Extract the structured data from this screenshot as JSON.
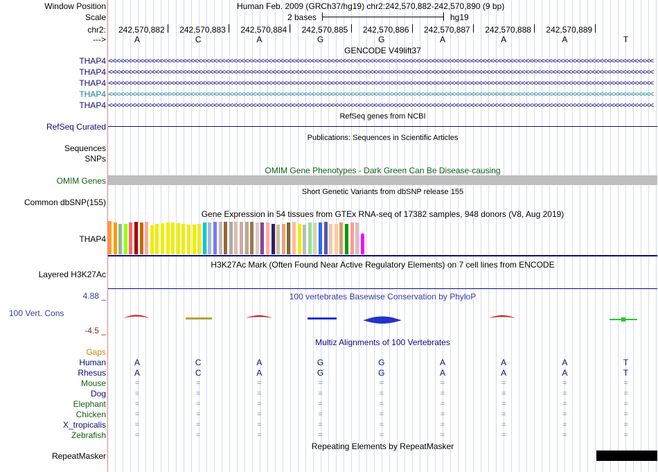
{
  "header": {
    "window_label": "Window Position",
    "window_value": "Human Feb. 2009 (GRCh37/hg19)   chr2:242,570,882-242,570,890 (9 bp)",
    "scale_label": "Scale",
    "scale_text": "2 bases",
    "assembly": "hg19",
    "chrom_label": "chr2:",
    "strand_label": "--->",
    "positions": [
      "242,570,882",
      "242,570,883",
      "242,570,884",
      "242,570,885",
      "242,570,886",
      "242,570,887",
      "242,570,888",
      "242,570,889"
    ],
    "bases": [
      "A",
      "C",
      "A",
      "G",
      "G",
      "A",
      "A",
      "A",
      "T"
    ]
  },
  "gencode": {
    "title": "GENCODE V49lift37",
    "genes": [
      "THAP4",
      "THAP4",
      "THAP4",
      "THAP4",
      "THAP4"
    ],
    "colors": [
      "#0c0c78",
      "#0c0c78",
      "#0c0c78",
      "#1a7c95",
      "#0c0c78"
    ]
  },
  "refseq": {
    "title": "RefSeq genes from NCBI",
    "label": "RefSeq Curated"
  },
  "publications": {
    "title": "Publications: Sequences in Scientific Articles",
    "labels": [
      "Sequences",
      "SNPs"
    ]
  },
  "omim": {
    "title": "OMIM Gene Phenotypes - Dark Green Can Be Disease-causing",
    "label": "OMIM Genes",
    "color": "#0f5f0f"
  },
  "dbsnp": {
    "title": "Short Genetic Variants from dbSNP release 155",
    "label": "Common dbSNP(155)"
  },
  "gtex": {
    "title": "Gene Expression in 54 tissues from GTEx RNA-seq of 17382 samples, 948 donors (V8, Aug 2019)",
    "label": "THAP4"
  },
  "h3k27ac": {
    "title": "H3K27Ac Mark (Often Found Near Active Regulatory Elements) on 7 cell lines from ENCODE",
    "label": "Layered H3K27Ac"
  },
  "phylop": {
    "title": "100 vertebrates Basewise Conservation by PhyloP",
    "label": "100 Vert. Cons",
    "max_label": "4.88 _",
    "min_label": "-4.5 _"
  },
  "multiz": {
    "title": "Multiz Alignments of 100 Vertebrates",
    "gaps_label": "Gaps",
    "species": [
      {
        "name": "Human",
        "color": "#0c0c78",
        "row": [
          "A",
          "C",
          "A",
          "G",
          "G",
          "A",
          "A",
          "A",
          "T"
        ]
      },
      {
        "name": "Rhesus",
        "color": "#0c0c78",
        "row": [
          "A",
          "C",
          "A",
          "G",
          "G",
          "A",
          "A",
          "A",
          "T"
        ]
      },
      {
        "name": "Mouse",
        "color": "#0f5f0f",
        "row": [
          "=",
          "=",
          "=",
          "=",
          "=",
          "=",
          "=",
          "=",
          "="
        ]
      },
      {
        "name": "Dog",
        "color": "#0c0c78",
        "row": [
          "=",
          "=",
          "=",
          "=",
          "=",
          "=",
          "=",
          "=",
          "="
        ]
      },
      {
        "name": "Elephant",
        "color": "#0f5f0f",
        "row": [
          "=",
          "=",
          "=",
          "=",
          "=",
          "=",
          "=",
          "=",
          "="
        ]
      },
      {
        "name": "Chicken",
        "color": "#0f5f0f",
        "row": [
          "=",
          "=",
          "=",
          "=",
          "=",
          "=",
          "=",
          "=",
          "="
        ]
      },
      {
        "name": "X_tropicalis",
        "color": "#0c0c78",
        "row": [
          "=",
          "=",
          "=",
          "=",
          "=",
          "=",
          "=",
          "=",
          "="
        ]
      },
      {
        "name": "Zebrafish",
        "color": "#0f5f0f",
        "row": [
          "=",
          "=",
          "=",
          "=",
          "=",
          "=",
          "=",
          "=",
          "="
        ]
      }
    ]
  },
  "repeatmasker": {
    "title": "Repeating Elements by RepeatMasker",
    "label": "RepeatMasker"
  },
  "colors": {
    "gencode": "#0c0c78",
    "omim": "#0f5f0f",
    "phylop": "#2e3d9e",
    "gaps": "#d4860a",
    "minus": "#8b2323"
  }
}
